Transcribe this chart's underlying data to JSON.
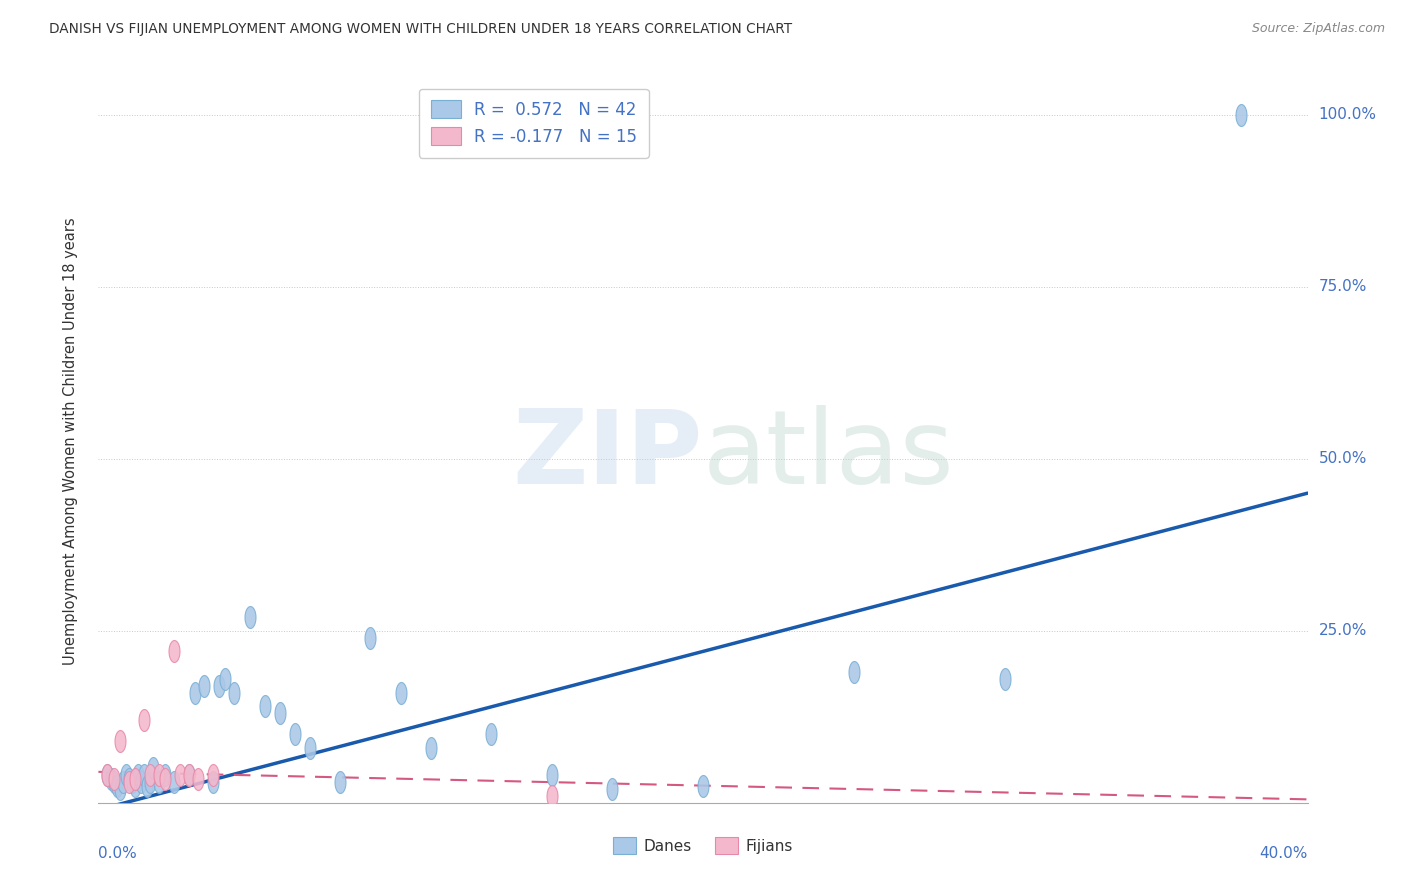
{
  "title": "DANISH VS FIJIAN UNEMPLOYMENT AMONG WOMEN WITH CHILDREN UNDER 18 YEARS CORRELATION CHART",
  "source": "Source: ZipAtlas.com",
  "ylabel": "Unemployment Among Women with Children Under 18 years",
  "xlim": [
    0.0,
    0.4
  ],
  "ylim": [
    0.0,
    1.05
  ],
  "ytick_positions": [
    0.0,
    0.25,
    0.5,
    0.75,
    1.0
  ],
  "ytick_labels": [
    "",
    "25.0%",
    "50.0%",
    "75.0%",
    "100.0%"
  ],
  "danish_R": 0.572,
  "danish_N": 42,
  "fijian_R": -0.177,
  "fijian_N": 15,
  "danish_color": "#aac8e8",
  "danish_edge_color": "#7aafd4",
  "danish_line_color": "#1a5aad",
  "fijian_color": "#f4b8cc",
  "fijian_edge_color": "#e888a8",
  "fijian_line_color": "#d45880",
  "grid_color": "#c8c8c8",
  "background_color": "#ffffff",
  "text_color": "#333333",
  "blue_label_color": "#4472c4",
  "danish_x": [
    0.003,
    0.004,
    0.005,
    0.006,
    0.007,
    0.008,
    0.009,
    0.01,
    0.011,
    0.012,
    0.013,
    0.014,
    0.015,
    0.016,
    0.017,
    0.018,
    0.02,
    0.022,
    0.025,
    0.03,
    0.032,
    0.035,
    0.038,
    0.04,
    0.042,
    0.045,
    0.05,
    0.055,
    0.06,
    0.065,
    0.07,
    0.08,
    0.09,
    0.1,
    0.11,
    0.13,
    0.15,
    0.17,
    0.2,
    0.25,
    0.3,
    0.378
  ],
  "danish_y": [
    0.04,
    0.035,
    0.03,
    0.025,
    0.02,
    0.03,
    0.04,
    0.035,
    0.03,
    0.025,
    0.04,
    0.03,
    0.04,
    0.025,
    0.03,
    0.05,
    0.03,
    0.04,
    0.03,
    0.04,
    0.16,
    0.17,
    0.03,
    0.17,
    0.18,
    0.16,
    0.27,
    0.14,
    0.13,
    0.1,
    0.08,
    0.03,
    0.24,
    0.16,
    0.08,
    0.1,
    0.04,
    0.02,
    0.025,
    0.19,
    0.18,
    1.0
  ],
  "fijian_x": [
    0.003,
    0.005,
    0.007,
    0.01,
    0.012,
    0.015,
    0.017,
    0.02,
    0.022,
    0.025,
    0.027,
    0.03,
    0.033,
    0.038,
    0.15
  ],
  "fijian_y": [
    0.04,
    0.035,
    0.09,
    0.03,
    0.035,
    0.12,
    0.04,
    0.04,
    0.035,
    0.22,
    0.04,
    0.04,
    0.035,
    0.04,
    0.01
  ]
}
